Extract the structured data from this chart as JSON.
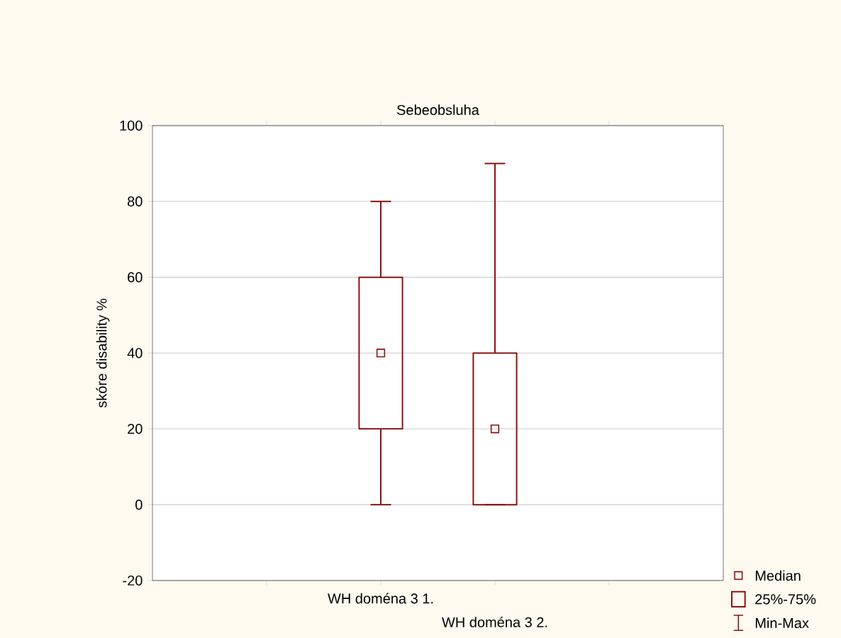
{
  "chart_data": {
    "type": "box",
    "title": "Sebeobsluha",
    "ylabel": "skóre disability %",
    "categories": [
      "WH doména 3 1.",
      "WH doména 3 2."
    ],
    "boxes": [
      {
        "low": 0,
        "q1": 20,
        "median": 40,
        "q3": 60,
        "high": 80
      },
      {
        "low": 0,
        "q1": 0,
        "median": 20,
        "q3": 40,
        "high": 90
      }
    ],
    "color": "#8b1414",
    "ylim": [
      -20,
      100
    ],
    "yticks": [
      -20,
      0,
      20,
      40,
      60,
      80,
      100
    ],
    "grid": "y",
    "marker": "square",
    "annotations": [
      "Median",
      "25%-75%",
      "Min-Max"
    ]
  }
}
